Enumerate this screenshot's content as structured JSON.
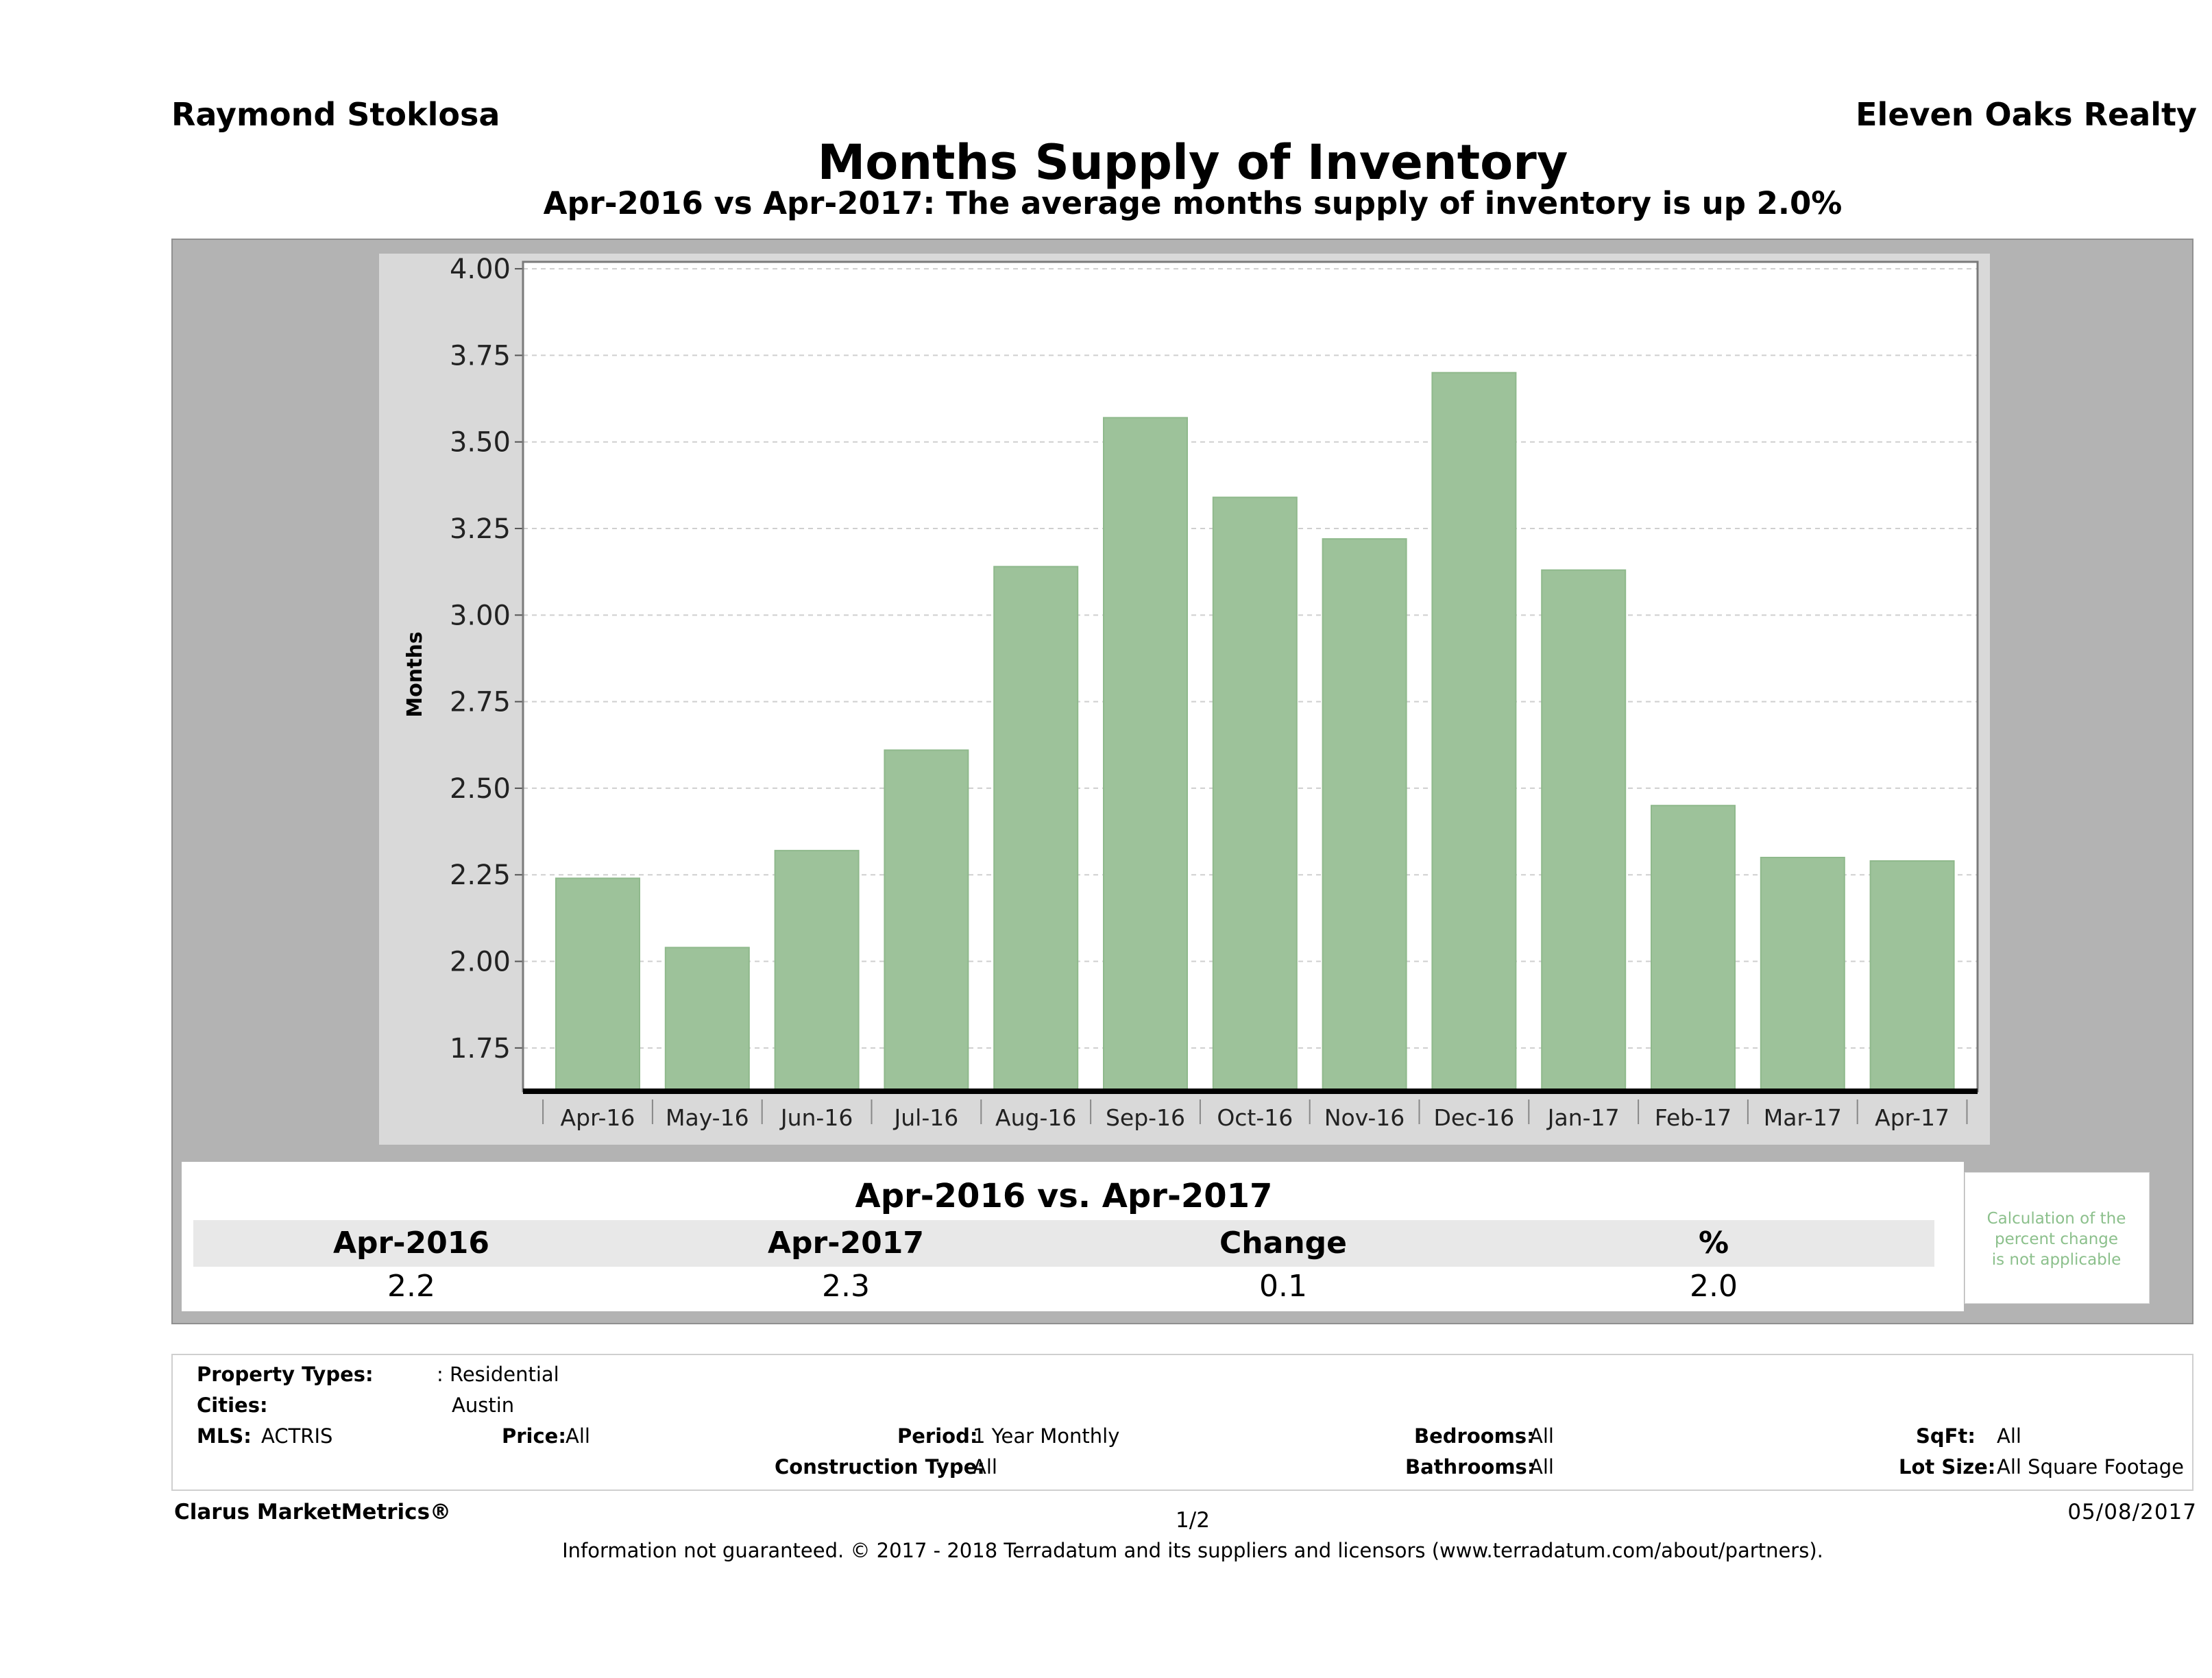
{
  "header": {
    "agent": "Raymond Stoklosa",
    "brokerage": "Eleven Oaks Realty",
    "title": "Months Supply of Inventory",
    "subtitle": "Apr-2016 vs Apr-2017: The average months supply of inventory is up 2.0%"
  },
  "chart_data": {
    "type": "bar",
    "categories": [
      "Apr-16",
      "May-16",
      "Jun-16",
      "Jul-16",
      "Aug-16",
      "Sep-16",
      "Oct-16",
      "Nov-16",
      "Dec-16",
      "Jan-17",
      "Feb-17",
      "Mar-17",
      "Apr-17"
    ],
    "values": [
      2.24,
      2.04,
      2.32,
      2.61,
      3.14,
      3.57,
      3.34,
      3.22,
      3.7,
      3.13,
      2.45,
      2.3,
      2.29
    ],
    "ylabel": "Months",
    "xlabel": "",
    "ylim": [
      1.625,
      4.02
    ],
    "yticks": [
      "1.75",
      "2.00",
      "2.25",
      "2.50",
      "2.75",
      "3.00",
      "3.25",
      "3.50",
      "3.75",
      "4.00"
    ],
    "grid": true,
    "bar_color": "#9dc29a"
  },
  "comparison": {
    "title": "Apr-2016 vs. Apr-2017",
    "headers": [
      "Apr-2016",
      "Apr-2017",
      "Change",
      "%"
    ],
    "values": [
      "2.2",
      "2.3",
      "0.1",
      "2.0"
    ],
    "note_lines": [
      "Calculation of the",
      "percent change",
      "is not applicable"
    ]
  },
  "filters": {
    "property_types_label": "Property Types:",
    "property_types_value": ": Residential",
    "cities_label": "Cities:",
    "cities_value": "Austin",
    "mls_label": "MLS:",
    "mls_value": "ACTRIS",
    "price_label": "Price:",
    "price_value": "All",
    "period_label": "Period:",
    "period_value": "1 Year Monthly",
    "construction_label": "Construction Type:",
    "construction_value": "All",
    "bedrooms_label": "Bedrooms:",
    "bedrooms_value": "All",
    "bathrooms_label": "Bathrooms:",
    "bathrooms_value": "All",
    "sqft_label": "SqFt:",
    "sqft_value": "All",
    "lotsize_label": "Lot Size:",
    "lotsize_value": "All Square Footage"
  },
  "footer": {
    "brand": "Clarus MarketMetrics®",
    "page": "1/2",
    "date": "05/08/2017",
    "disclaimer": "Information not guaranteed. © 2017 - 2018 Terradatum and its suppliers and licensors (www.terradatum.com/about/partners)."
  }
}
